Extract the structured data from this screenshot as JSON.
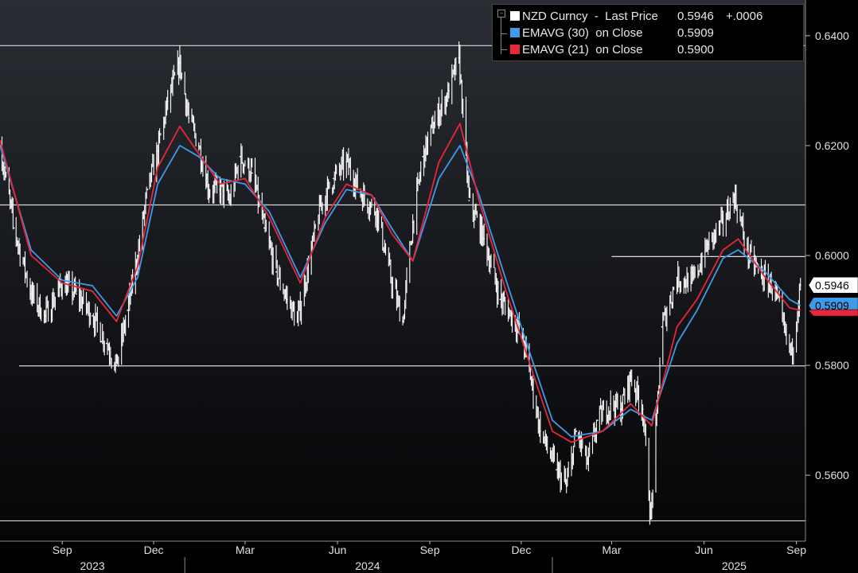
{
  "chart_data": {
    "type": "line",
    "title": "",
    "xlabel": "",
    "ylabel": "",
    "x_range": [
      "2023-07-01",
      "2025-09-10"
    ],
    "ylim": [
      0.548,
      0.6465
    ],
    "y_ticks": [
      {
        "value": 0.64,
        "label": "0.6400"
      },
      {
        "value": 0.62,
        "label": "0.6200"
      },
      {
        "value": 0.6,
        "label": "0.6000"
      },
      {
        "value": 0.58,
        "label": "0.5800"
      },
      {
        "value": 0.56,
        "label": "0.5600"
      }
    ],
    "x_month_ticks": [
      {
        "date": "2023-09-01",
        "label": "Sep"
      },
      {
        "date": "2023-12-01",
        "label": "Dec"
      },
      {
        "date": "2024-03-01",
        "label": "Mar"
      },
      {
        "date": "2024-06-01",
        "label": "Jun"
      },
      {
        "date": "2024-09-01",
        "label": "Sep"
      },
      {
        "date": "2024-12-01",
        "label": "Dec"
      },
      {
        "date": "2025-03-01",
        "label": "Mar"
      },
      {
        "date": "2025-06-01",
        "label": "Jun"
      },
      {
        "date": "2025-09-01",
        "label": "Sep"
      }
    ],
    "x_year_labels": [
      {
        "label": "2023",
        "date": "2023-10-01"
      },
      {
        "label": "2024",
        "date": "2024-07-01"
      },
      {
        "label": "2025",
        "date": "2025-07-01"
      }
    ],
    "year_separators": [
      "2024-01-01",
      "2025-01-01"
    ],
    "horizontal_lines": [
      {
        "value": 0.6382,
        "from": "2023-07-01",
        "to": "2025-09-10"
      },
      {
        "value": 0.6092,
        "from": "2023-07-01",
        "to": "2025-09-10"
      },
      {
        "value": 0.5998,
        "from": "2025-03-01",
        "to": "2025-09-10"
      },
      {
        "value": 0.5799,
        "from": "2023-07-20",
        "to": "2025-09-10"
      },
      {
        "value": 0.5517,
        "from": "2023-07-01",
        "to": "2025-09-10"
      }
    ],
    "legend": {
      "placement": "top-right",
      "entries": [
        {
          "series": "NZD Curncy  -  Last Price",
          "value": "0.5946",
          "change": "+.0006",
          "color": "#ffffff"
        },
        {
          "series": "EMAVG (30)  on Close",
          "value": "0.5909",
          "color": "#3f9be8"
        },
        {
          "series": "EMAVG (21)  on Close",
          "value": "0.5900",
          "color": "#e8273a"
        }
      ]
    },
    "value_tags": [
      {
        "label": "0.5946",
        "value": 0.5946,
        "background": "#ffffff",
        "text": "#000000"
      },
      {
        "label": "0.5909",
        "value": 0.5909,
        "background": "#3f9be8",
        "text": "#000000"
      },
      {
        "label": "",
        "value": 0.59,
        "background": "#e8273a",
        "text": "#000000"
      }
    ],
    "series": [
      {
        "name": "NZD Curncy  -  Last Price",
        "color": "#ffffff",
        "kind": "price",
        "points": [
          [
            "2023-07-01",
            0.62
          ],
          [
            "2023-07-15",
            0.605
          ],
          [
            "2023-08-01",
            0.593
          ],
          [
            "2023-08-15",
            0.589
          ],
          [
            "2023-09-01",
            0.595
          ],
          [
            "2023-09-15",
            0.593
          ],
          [
            "2023-10-01",
            0.589
          ],
          [
            "2023-10-15",
            0.584
          ],
          [
            "2023-10-25",
            0.58
          ],
          [
            "2023-11-05",
            0.59
          ],
          [
            "2023-11-15",
            0.6
          ],
          [
            "2023-11-25",
            0.612
          ],
          [
            "2023-12-05",
            0.619
          ],
          [
            "2023-12-15",
            0.628
          ],
          [
            "2023-12-27",
            0.635
          ],
          [
            "2024-01-05",
            0.625
          ],
          [
            "2024-01-15",
            0.62
          ],
          [
            "2024-01-25",
            0.612
          ],
          [
            "2024-02-05",
            0.612
          ],
          [
            "2024-02-15",
            0.61
          ],
          [
            "2024-02-25",
            0.618
          ],
          [
            "2024-03-08",
            0.615
          ],
          [
            "2024-03-20",
            0.605
          ],
          [
            "2024-04-01",
            0.597
          ],
          [
            "2024-04-12",
            0.592
          ],
          [
            "2024-04-22",
            0.588
          ],
          [
            "2024-05-05",
            0.6
          ],
          [
            "2024-05-15",
            0.609
          ],
          [
            "2024-05-28",
            0.614
          ],
          [
            "2024-06-10",
            0.617
          ],
          [
            "2024-06-25",
            0.611
          ],
          [
            "2024-07-10",
            0.608
          ],
          [
            "2024-07-25",
            0.595
          ],
          [
            "2024-08-05",
            0.588
          ],
          [
            "2024-08-15",
            0.606
          ],
          [
            "2024-08-25",
            0.618
          ],
          [
            "2024-09-05",
            0.624
          ],
          [
            "2024-09-20",
            0.63
          ],
          [
            "2024-09-30",
            0.636
          ],
          [
            "2024-10-10",
            0.61
          ],
          [
            "2024-10-25",
            0.603
          ],
          [
            "2024-11-10",
            0.592
          ],
          [
            "2024-11-25",
            0.588
          ],
          [
            "2024-12-05",
            0.583
          ],
          [
            "2024-12-20",
            0.568
          ],
          [
            "2025-01-05",
            0.561
          ],
          [
            "2025-01-15",
            0.558
          ],
          [
            "2025-01-25",
            0.568
          ],
          [
            "2025-02-05",
            0.562
          ],
          [
            "2025-02-15",
            0.57
          ],
          [
            "2025-02-28",
            0.573
          ],
          [
            "2025-03-10",
            0.572
          ],
          [
            "2025-03-20",
            0.578
          ],
          [
            "2025-04-01",
            0.572
          ],
          [
            "2025-04-09",
            0.552
          ],
          [
            "2025-04-20",
            0.587
          ],
          [
            "2025-05-05",
            0.596
          ],
          [
            "2025-05-20",
            0.595
          ],
          [
            "2025-06-05",
            0.602
          ],
          [
            "2025-06-20",
            0.606
          ],
          [
            "2025-07-01",
            0.611
          ],
          [
            "2025-07-15",
            0.6
          ],
          [
            "2025-07-30",
            0.596
          ],
          [
            "2025-08-10",
            0.594
          ],
          [
            "2025-08-20",
            0.586
          ],
          [
            "2025-08-27",
            0.582
          ],
          [
            "2025-09-05",
            0.5946
          ]
        ]
      },
      {
        "name": "EMAVG (30)  on Close",
        "color": "#3f9be8",
        "kind": "line",
        "points": [
          [
            "2023-07-01",
            0.62
          ],
          [
            "2023-08-01",
            0.601
          ],
          [
            "2023-09-01",
            0.5955
          ],
          [
            "2023-10-01",
            0.5945
          ],
          [
            "2023-10-25",
            0.589
          ],
          [
            "2023-11-15",
            0.596
          ],
          [
            "2023-12-05",
            0.613
          ],
          [
            "2023-12-27",
            0.62
          ],
          [
            "2024-01-15",
            0.618
          ],
          [
            "2024-02-05",
            0.614
          ],
          [
            "2024-03-01",
            0.613
          ],
          [
            "2024-03-25",
            0.608
          ],
          [
            "2024-04-25",
            0.596
          ],
          [
            "2024-05-20",
            0.606
          ],
          [
            "2024-06-10",
            0.612
          ],
          [
            "2024-07-05",
            0.611
          ],
          [
            "2024-07-25",
            0.605
          ],
          [
            "2024-08-15",
            0.599
          ],
          [
            "2024-09-10",
            0.614
          ],
          [
            "2024-10-01",
            0.62
          ],
          [
            "2024-10-20",
            0.611
          ],
          [
            "2024-11-15",
            0.596
          ],
          [
            "2024-12-10",
            0.582
          ],
          [
            "2025-01-01",
            0.57
          ],
          [
            "2025-01-20",
            0.567
          ],
          [
            "2025-02-20",
            0.568
          ],
          [
            "2025-03-20",
            0.572
          ],
          [
            "2025-04-10",
            0.57
          ],
          [
            "2025-05-05",
            0.584
          ],
          [
            "2025-05-25",
            0.59
          ],
          [
            "2025-06-20",
            0.5995
          ],
          [
            "2025-07-05",
            0.601
          ],
          [
            "2025-08-01",
            0.597
          ],
          [
            "2025-08-25",
            0.592
          ],
          [
            "2025-09-05",
            0.5909
          ]
        ]
      },
      {
        "name": "EMAVG (21)  on Close",
        "color": "#e8273a",
        "kind": "line",
        "points": [
          [
            "2023-07-01",
            0.621
          ],
          [
            "2023-08-01",
            0.6
          ],
          [
            "2023-09-01",
            0.595
          ],
          [
            "2023-10-01",
            0.5935
          ],
          [
            "2023-10-25",
            0.588
          ],
          [
            "2023-11-15",
            0.598
          ],
          [
            "2023-12-05",
            0.616
          ],
          [
            "2023-12-27",
            0.6235
          ],
          [
            "2024-01-15",
            0.6185
          ],
          [
            "2024-02-05",
            0.613
          ],
          [
            "2024-03-01",
            0.614
          ],
          [
            "2024-03-25",
            0.607
          ],
          [
            "2024-04-25",
            0.595
          ],
          [
            "2024-05-20",
            0.607
          ],
          [
            "2024-06-10",
            0.613
          ],
          [
            "2024-07-05",
            0.611
          ],
          [
            "2024-07-25",
            0.604
          ],
          [
            "2024-08-15",
            0.599
          ],
          [
            "2024-09-10",
            0.617
          ],
          [
            "2024-10-01",
            0.624
          ],
          [
            "2024-10-20",
            0.61
          ],
          [
            "2024-11-15",
            0.594
          ],
          [
            "2024-12-10",
            0.58
          ],
          [
            "2025-01-01",
            0.568
          ],
          [
            "2025-01-20",
            0.566
          ],
          [
            "2025-02-20",
            0.568
          ],
          [
            "2025-03-20",
            0.573
          ],
          [
            "2025-04-10",
            0.569
          ],
          [
            "2025-05-05",
            0.587
          ],
          [
            "2025-05-25",
            0.592
          ],
          [
            "2025-06-20",
            0.601
          ],
          [
            "2025-07-05",
            0.603
          ],
          [
            "2025-08-01",
            0.596
          ],
          [
            "2025-08-25",
            0.5905
          ],
          [
            "2025-09-05",
            0.59
          ]
        ]
      }
    ]
  }
}
